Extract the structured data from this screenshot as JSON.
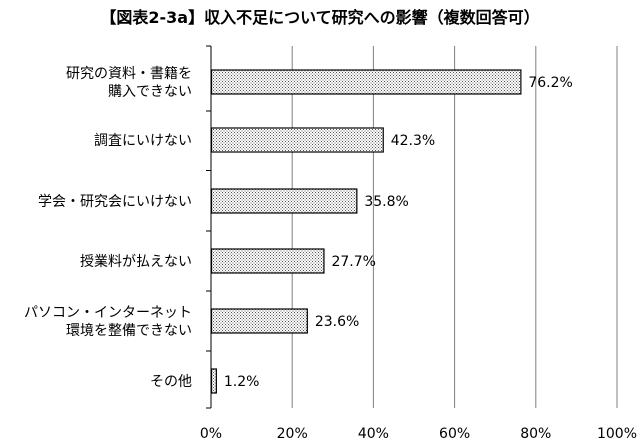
{
  "chart_data": {
    "type": "bar",
    "orientation": "horizontal",
    "title": "【図表2-3a】収入不足について研究への影響（複数回答可）",
    "xlabel": "",
    "ylabel": "",
    "categories": [
      [
        "研究の資料・書籍を",
        "購入できない"
      ],
      [
        "調査にいけない"
      ],
      [
        "学会・研究会にいけない"
      ],
      [
        "授業料が払えない"
      ],
      [
        "パソコン・インターネット",
        "環境を整備できない"
      ],
      [
        "その他"
      ]
    ],
    "series": [
      {
        "values": [
          76.2,
          42.3,
          35.8,
          27.7,
          23.6,
          1.2
        ]
      }
    ],
    "data_labels": [
      "76.2%",
      "42.3%",
      "35.8%",
      "27.7%",
      "23.6%",
      "1.2%"
    ],
    "xlim": [
      0,
      100
    ],
    "x_ticks": [
      0,
      20,
      40,
      60,
      80,
      100
    ],
    "x_tick_labels": [
      "0%",
      "20%",
      "40%",
      "60%",
      "80%",
      "100%"
    ],
    "grid": "vertical",
    "legend": "none",
    "colors": {
      "bar_fill": "#d9d9d9",
      "bar_stroke": "#000000",
      "grid": "#808080",
      "axis": "#000000"
    }
  }
}
